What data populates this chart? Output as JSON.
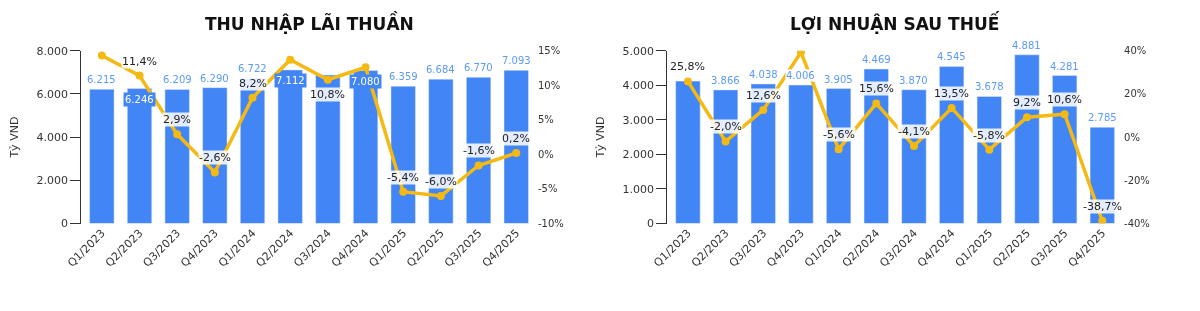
{
  "chart_data": [
    {
      "type": "bar",
      "title": "THU NHẬP LÃI THUẦN",
      "ylabel": "Tỷ VND",
      "categories": [
        "Q1/2023",
        "Q2/2023",
        "Q3/2023",
        "Q4/2023",
        "Q1/2024",
        "Q2/2024",
        "Q3/2024",
        "Q4/2024",
        "Q1/2025",
        "Q2/2025",
        "Q3/2025",
        "Q4/2025"
      ],
      "series": [
        {
          "color": "#4285f4",
          "values": [
            6215,
            6246,
            6209,
            6290,
            6722,
            7112,
            6870,
            7080,
            6359,
            6684,
            6770,
            7093
          ],
          "value_labels": [
            "6.215",
            "6.246",
            "6.209",
            "6.290",
            "6.722",
            "7.112",
            null,
            "7.080",
            "6.359",
            "6.684",
            "6.770",
            "7.093"
          ]
        },
        {
          "type": "line",
          "axis": "y2",
          "color": "#f5b914",
          "marker": "circle",
          "values": [
            14.3,
            11.4,
            2.9,
            -2.6,
            8.2,
            13.7,
            10.8,
            12.6,
            -5.4,
            -6.0,
            -1.6,
            0.2
          ],
          "value_labels": [
            null,
            "11,4%",
            "2,9%",
            "-2,6%",
            "8,2%",
            null,
            "10,8%",
            null,
            "-5,4%",
            "-6,0%",
            "-1,6%",
            "0,2%"
          ]
        }
      ],
      "ylim": [
        0,
        8000
      ],
      "yticks": [
        0,
        {
          "value": 2000,
          "label": "2.000"
        },
        {
          "value": 4000,
          "label": "4.000"
        },
        {
          "value": 6000,
          "label": "6.000"
        },
        {
          "value": 8000,
          "label": "8.000"
        }
      ],
      "y2lim": [
        -10,
        15
      ],
      "y2ticks": [
        {
          "value": -10,
          "label": "-10%"
        },
        {
          "value": -5,
          "label": "-5%"
        },
        {
          "value": 0,
          "label": "0%"
        },
        {
          "value": 5,
          "label": "5%"
        },
        {
          "value": 10,
          "label": "10%"
        },
        {
          "value": 15,
          "label": "15%"
        }
      ]
    },
    {
      "type": "bar",
      "title": "LỢI NHUẬN SAU THUẾ",
      "ylabel": "Tỷ VND",
      "categories": [
        "Q1/2023",
        "Q2/2023",
        "Q3/2023",
        "Q4/2023",
        "Q1/2024",
        "Q2/2024",
        "Q3/2024",
        "Q4/2024",
        "Q1/2025",
        "Q2/2025",
        "Q3/2025",
        "Q4/2025"
      ],
      "series": [
        {
          "color": "#4285f4",
          "values": [
            4120,
            3866,
            4038,
            4006,
            3905,
            4469,
            3870,
            4545,
            3678,
            4881,
            4281,
            2785
          ],
          "value_labels": [
            null,
            "3.866",
            "4.038",
            "4.006",
            "3.905",
            "4.469",
            "3.870",
            "4.545",
            "3.678",
            "4.881",
            "4.281",
            "2.785"
          ]
        },
        {
          "type": "line",
          "axis": "y2",
          "color": "#f5b914",
          "marker": "circle",
          "values": [
            25.8,
            -2.0,
            12.6,
            39.3,
            -5.6,
            15.6,
            -4.1,
            13.5,
            -5.8,
            9.2,
            10.6,
            -38.7
          ],
          "value_labels": [
            "25,8%",
            "-2,0%",
            "12,6%",
            null,
            "-5,6%",
            "15,6%",
            "-4,1%",
            "13,5%",
            "-5,8%",
            "9,2%",
            "10,6%",
            "-38,7%"
          ]
        }
      ],
      "ylim": [
        0,
        5000
      ],
      "yticks": [
        0,
        {
          "value": 1000,
          "label": "1.000"
        },
        {
          "value": 2000,
          "label": "2.000"
        },
        {
          "value": 3000,
          "label": "3.000"
        },
        {
          "value": 4000,
          "label": "4.000"
        },
        {
          "value": 5000,
          "label": "5.000"
        }
      ],
      "y2lim": [
        -40,
        40
      ],
      "y2ticks": [
        {
          "value": -40,
          "label": "-40%"
        },
        {
          "value": -20,
          "label": "-20%"
        },
        {
          "value": 0,
          "label": "0%"
        },
        {
          "value": 20,
          "label": "20%"
        },
        {
          "value": 40,
          "label": "40%"
        }
      ]
    }
  ]
}
